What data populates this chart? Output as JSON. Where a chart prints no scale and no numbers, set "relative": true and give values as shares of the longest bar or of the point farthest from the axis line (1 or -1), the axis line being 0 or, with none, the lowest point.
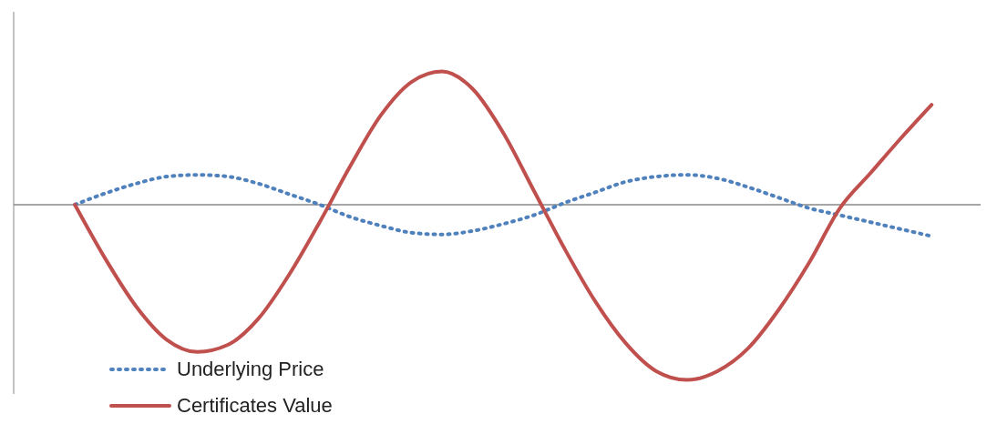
{
  "chart_data": {
    "type": "line",
    "relative": true,
    "legend": "bottom left",
    "marker": "none",
    "categories": [
      null,
      null,
      null,
      null,
      null,
      null,
      null,
      null,
      null,
      null,
      null,
      null,
      null,
      null,
      null,
      null,
      null,
      null,
      null,
      null,
      null,
      null,
      null,
      null,
      null,
      null,
      null,
      null,
      null
    ],
    "series": [
      {
        "name": "Underlying Price",
        "color": "#4f81bd",
        "line_style": "dotted",
        "values": [
          0,
          0.065,
          0.12,
          0.16,
          0.17,
          0.16,
          0.12,
          0.06,
          0,
          -0.07,
          -0.12,
          -0.16,
          -0.17,
          -0.15,
          -0.11,
          -0.06,
          0.01,
          0.07,
          0.13,
          0.16,
          0.17,
          0.15,
          0.1,
          0.04,
          -0.02,
          -0.06,
          -0.1,
          -0.14,
          -0.18
        ]
      },
      {
        "name": "Certificates Value",
        "color": "#c0504d",
        "line_style": "solid",
        "values": [
          0,
          -0.31,
          -0.58,
          -0.77,
          -0.84,
          -0.8,
          -0.65,
          -0.4,
          -0.1,
          0.22,
          0.51,
          0.7,
          0.76,
          0.66,
          0.41,
          0.08,
          -0.25,
          -0.55,
          -0.79,
          -0.95,
          -1,
          -0.95,
          -0.82,
          -0.6,
          -0.33,
          -0.02,
          0.18,
          0.38,
          0.57
        ]
      }
    ]
  }
}
